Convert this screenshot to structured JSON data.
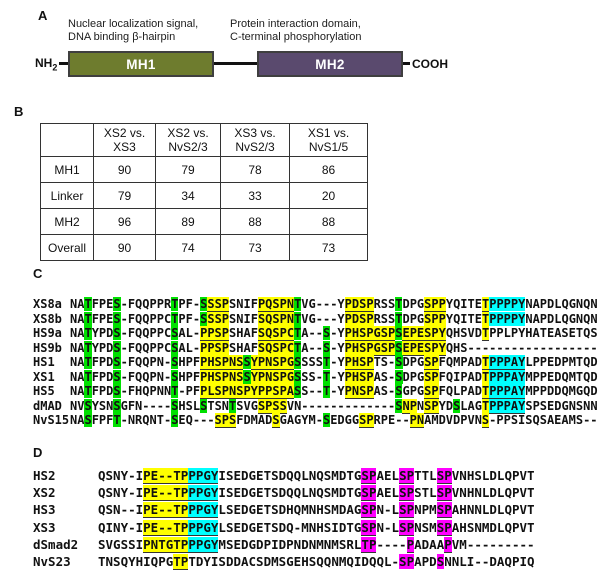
{
  "colors": {
    "highlight_green": "#00e000",
    "highlight_yellow": "#ffff00",
    "highlight_cyan": "#00ffff",
    "highlight_magenta": "#ff00ff",
    "mh1_fill": "#6e7c2e",
    "mh2_fill": "#5a4a6e"
  },
  "panel_a": {
    "label": "A",
    "mh1_annotation_line1": "Nuclear localization signal,",
    "mh1_annotation_line2": "DNA binding β-hairpin",
    "mh2_annotation_line1": "Protein interaction domain,",
    "mh2_annotation_line2": "C-terminal phosphorylation",
    "nh2_main": "NH",
    "nh2_sub": "2",
    "mh1_label": "MH1",
    "mh2_label": "MH2",
    "cooh": "COOH"
  },
  "panel_b": {
    "label": "B",
    "table": {
      "col_headers": [
        [
          "XS2 vs.",
          "XS3"
        ],
        [
          "XS2 vs.",
          "NvS2/3"
        ],
        [
          "XS3 vs.",
          "NvS2/3"
        ],
        [
          "XS1 vs.",
          "NvS1/5"
        ]
      ],
      "rows": [
        {
          "label": "MH1",
          "values": [
            "90",
            "79",
            "78",
            "86"
          ]
        },
        {
          "label": "Linker",
          "values": [
            "79",
            "34",
            "33",
            "20"
          ]
        },
        {
          "label": "MH2",
          "values": [
            "96",
            "89",
            "88",
            "88"
          ]
        },
        {
          "label": "Overall",
          "values": [
            "90",
            "74",
            "73",
            "73"
          ]
        }
      ]
    }
  },
  "panel_c": {
    "label": "C",
    "legend": "mask codes: . plain, g green, Y yellow underlined, y yellow, C cyan underlined, c cyan, M magenta underlined, m magenta",
    "rows": [
      {
        "name": "XS8a",
        "seq": "NATFPES-FQQPPRTPF-SSSPSNIFPQSPNTVG---YPDSPRSSTDPGSPPYQITETPPPPYNAPDLQGNQN",
        "mask": "..g...g.......g...gYYY....YYYYYg......YYYY...g...YYY.....Yccccc.........."
      },
      {
        "name": "XS8b",
        "seq": "NATFPES-FQQPPCTPF-SSSPSNIFSQSPNTVG---YPDSPRSSTDPGSPPYQITETPPPPYNAPDLQGNQN",
        "mask": "..g...g.......g...gYYY....YYYYYg......YYYY...g...YYY.....Yccccc.........."
      },
      {
        "name": "HS9a",
        "seq": "NATYPDS-FQQPPCSAL-PPSPSHAFSQSPCTA--S-YPHSPGSPSEPESPYQHSVDTPPLPYHATEASETQS",
        "mask": "..g...g.......g...YYYY....YYYYYg...g..YYYYYYYgYYYYYY.....Y..............."
      },
      {
        "name": "HS9b",
        "seq": "NATYPDS-FQQPPCSAL-PPSPSHAFSQSPCTA--S-YPHSPGSPSEPESPYQHS------------------",
        "mask": "..g...g.......g...YYYY....YYYYYg...g..YYYYYYYgYYYYYY....................."
      },
      {
        "name": "HS1",
        "seq": "NATFPDS-FQQPN-SHPFPHSPNSSYPNSPGSSSST-YPHSPTS-SDPGSPFQMPADTPPPAYLPPEDPMTQD",
        "mask": "..g...g.......g...YYYYYYgYYYYYYg...g..YYYY...g...YY......YCCCCC.........."
      },
      {
        "name": "XS1",
        "seq": "NATFPDS-FQQPN-SHPFPHSPNSSYPNSPGSSS-T-YPHSPAS-SDPGSPFQIPADTPPPAYMPPEDQMTQD",
        "mask": "..g...g.......g...YYYYYYgYYYYYYg...g..YYYY...g...YY......YCCCCC.........."
      },
      {
        "name": "HS5",
        "seq": "NATFPDS-FHQPNNT-PFPLSPNSPYPPSPASS--T-YPNSPAS-SGPGSPFQLPADTPPPAYMPPDDQMGQD",
        "mask": "..g...g.......g...YYYYYYYYYYYYYg...g..YYYY...g...YY......YCCCCC.........."
      },
      {
        "name": "dMAD",
        "seq": "NVSYSNSGFN----SHSLSTSNTSVGSPSSVN-------------SNPNSPYDSLAGTPPPAYSPSEDGNSNN",
        "mask": "..g...g.......g...g...g...YYYY...............gYY.YY..g...YCCCCC.........."
      },
      {
        "name": "NvS15",
        "seq": "NASFPFT-NRQNT-SEQ---SPSFDMADSGAGYM-SEDGGSPRPE--PNAMDVDPVNS-PPSISQSAEAMS--",
        "mask": "..g...g.......g.....YYY.....Y......g....YY.....YY........Y..............."
      }
    ]
  },
  "panel_d": {
    "label": "D",
    "rows": [
      {
        "name": "HS2",
        "seq": "QSNY-IPE--TPPPGYISEDGETSDQQLNQSMDTGSPAELSPTTLSPVNHSLDLQPVT",
        "mask": "......YYYYYYCCCC...................MM...MM...MM..........."
      },
      {
        "name": "XS2",
        "seq": "QSNY-IPE--TPPPGYISEDGETSDQQLNQSMDTGSPAELSPSTLSPVNHNLDLQPVT",
        "mask": "......YYYYYYCCCC...................MM...MM...MM..........."
      },
      {
        "name": "HS3",
        "seq": "QSN--IPE--TPPPGYLSEDGETSDHQMNHSMDAGSPN-LSPNPMSPAHNNLDLQPVT",
        "mask": "......YYYYYYCCCC...................MM...MM...MM..........."
      },
      {
        "name": "XS3",
        "seq": "QINY-IPE--TPPPGYLSEDGETSDQ-MNHSIDTGSPN-LSPNSMSPAHSNMDLQPVT",
        "mask": "......YYYYYYCCCC...................MM...MM...MM..........."
      },
      {
        "name": "dSmad2",
        "seq": "SVGSSIPNTGTPPPGYMSEDGDPIDPNDNMNMSRLTP----PADAAPVM---------",
        "mask": "......YYYYYYCCCC...................MM....M....M..........."
      },
      {
        "name": "NvS23",
        "seq": "TNSQYHIQPGTPTDYISDDACSDMSGEHSQQNMQIDQQL-SPAPDSNNLI--DAQPIQ",
        "mask": "..........YY............................mm...m............"
      }
    ]
  }
}
